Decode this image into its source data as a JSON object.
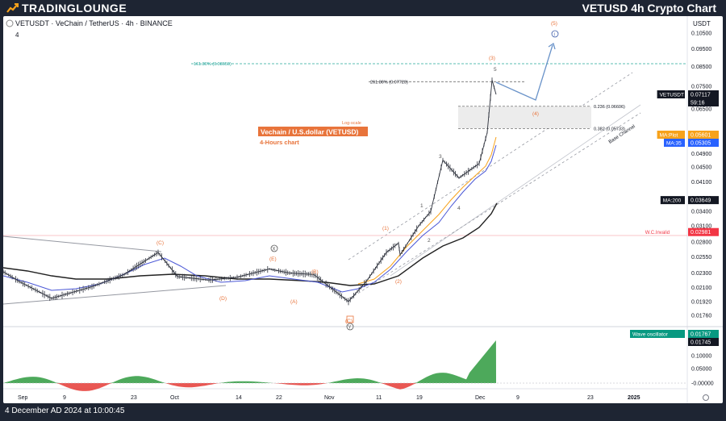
{
  "header": {
    "logo_text": "TRADINGLOUNGE",
    "page_title": "VETUSD 4h Crypto Chart"
  },
  "footer": {
    "datetime": "4 December AD 2024 at 10:00:45"
  },
  "chart_data": {
    "type": "line",
    "symbol_line": "VETUSDT · VeChain / TetherUS · 4h · BINANCE",
    "indicator_count": "4",
    "currency": "USDT",
    "log_scale_label": "Log-scale",
    "chart_title": "Vechain / U.S.dollar (VETUSD)",
    "chart_subtitle": "4-Hours chart",
    "x_tick_labels": [
      "Sep",
      "9",
      "23",
      "Oct",
      "14",
      "22",
      "Nov",
      "11",
      "19",
      "Dec",
      "9",
      "23",
      "2025"
    ],
    "y_tick_labels": [
      "0.10500",
      "0.09500",
      "0.08500",
      "0.07500",
      "0.06500",
      "0.05500",
      "0.04900",
      "0.04500",
      "0.04100",
      "0.03700",
      "0.03400",
      "0.03100",
      "0.02800",
      "0.02550",
      "0.02300",
      "0.02100",
      "0.01920",
      "0.01760"
    ],
    "osc_tick_labels": [
      "0.10000",
      "0.05000",
      "-0.00000"
    ],
    "price_badges": [
      {
        "label": "VETUSDT",
        "value": "0.07117",
        "sub": "59:16",
        "color": "#131722"
      },
      {
        "label": "MA:Plot",
        "value": "0.05601",
        "color": "#f7a21b"
      },
      {
        "label": "MA:35",
        "value": "0.05305",
        "color": "#2962ff"
      },
      {
        "label": "MA:200",
        "value": "0.03649",
        "color": "#131722"
      },
      {
        "label": "W.C.Invalid",
        "value": "0.02981",
        "color": "#f23645"
      },
      {
        "label": "Wave oscillator",
        "value": "0.01767",
        "sub": "0.01745",
        "color": "#089981"
      }
    ],
    "fib_levels": [
      {
        "label": "161.80% (0.08650)",
        "price": 0.0865
      },
      {
        "label": "261.80% (0.07720)",
        "price": 0.0772
      },
      {
        "label": "0.236 (0.06606)",
        "price": 0.06606
      },
      {
        "label": "0.382 (0.05733)",
        "price": 0.05733
      }
    ],
    "invalidation_price": 0.02981,
    "channel_label": "Base Channel",
    "wave_labels": [
      "(C)",
      "(D)",
      "(E)",
      "(A)",
      "(B)",
      "(C)",
      "(1)",
      "(2)",
      "(3)",
      "(4)",
      "(5)",
      "1",
      "2",
      "3",
      "4",
      "5",
      "X",
      "Y",
      "i"
    ],
    "price_series": [
      {
        "x": "Sep 1",
        "y": 0.0232
      },
      {
        "x": "Sep 5",
        "y": 0.0218
      },
      {
        "x": "Sep 7",
        "y": 0.0196
      },
      {
        "x": "Sep 14",
        "y": 0.0211
      },
      {
        "x": "Sep 20",
        "y": 0.0228
      },
      {
        "x": "Sep 27",
        "y": 0.0262
      },
      {
        "x": "Oct 1",
        "y": 0.0225
      },
      {
        "x": "Oct 7",
        "y": 0.022
      },
      {
        "x": "Oct 13",
        "y": 0.0224
      },
      {
        "x": "Oct 20",
        "y": 0.0236
      },
      {
        "x": "Oct 24",
        "y": 0.023
      },
      {
        "x": "Oct 29",
        "y": 0.0228
      },
      {
        "x": "Nov 4",
        "y": 0.0192
      },
      {
        "x": "Nov 8",
        "y": 0.0218
      },
      {
        "x": "Nov 12",
        "y": 0.0262
      },
      {
        "x": "Nov 15",
        "y": 0.0278
      },
      {
        "x": "Nov 17",
        "y": 0.0258
      },
      {
        "x": "Nov 20",
        "y": 0.031
      },
      {
        "x": "Nov 22",
        "y": 0.034
      },
      {
        "x": "Nov 24",
        "y": 0.047
      },
      {
        "x": "Nov 27",
        "y": 0.042
      },
      {
        "x": "Nov 30",
        "y": 0.046
      },
      {
        "x": "Dec 2",
        "y": 0.056
      },
      {
        "x": "Dec 3",
        "y": 0.078
      },
      {
        "x": "Dec 4",
        "y": 0.0712
      }
    ],
    "projection": [
      {
        "x": "Dec 4",
        "y": 0.0712
      },
      {
        "x": "Dec 7",
        "y": 0.068
      },
      {
        "x": "Dec 12",
        "y": 0.099
      }
    ],
    "ylim": [
      0.0176,
      0.105
    ]
  }
}
